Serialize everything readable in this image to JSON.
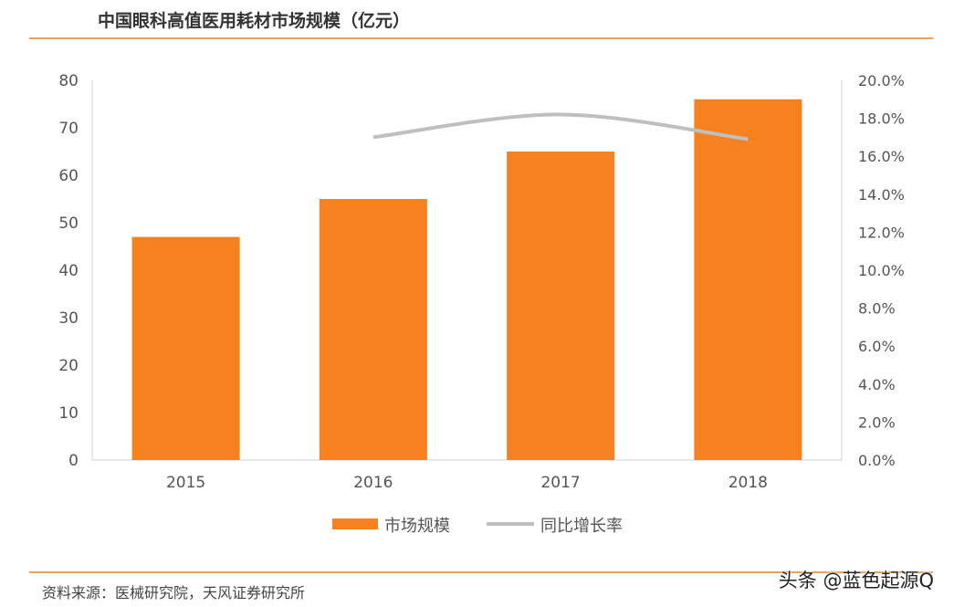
{
  "title": "中国眼科高值医用耗材市场规模（亿元）",
  "source": "资料来源：医械研究院，天风证券研究所",
  "watermark": "头条 @蓝色起源Q",
  "chart_data": {
    "type": "bar+line",
    "title": "中国眼科高值医用耗材市场规模（亿元）",
    "categories": [
      "2015",
      "2016",
      "2017",
      "2018"
    ],
    "series": [
      {
        "name": "市场规模",
        "type": "bar",
        "axis": "left",
        "color": "#f5821f",
        "values": [
          47,
          55,
          65,
          76
        ]
      },
      {
        "name": "同比增长率",
        "type": "line",
        "axis": "right",
        "color": "#bfbfbf",
        "values": [
          null,
          17.0,
          18.2,
          16.9
        ]
      }
    ],
    "y_left": {
      "range": [
        0,
        80
      ],
      "ticks": [
        "0",
        "10",
        "20",
        "30",
        "40",
        "50",
        "60",
        "70",
        "80"
      ]
    },
    "y_right": {
      "range": [
        0,
        20
      ],
      "unit": "%",
      "ticks": [
        "0.0%",
        "2.0%",
        "4.0%",
        "6.0%",
        "8.0%",
        "10.0%",
        "12.0%",
        "14.0%",
        "16.0%",
        "18.0%",
        "20.0%"
      ]
    },
    "grid": false,
    "legend": "bottom"
  }
}
